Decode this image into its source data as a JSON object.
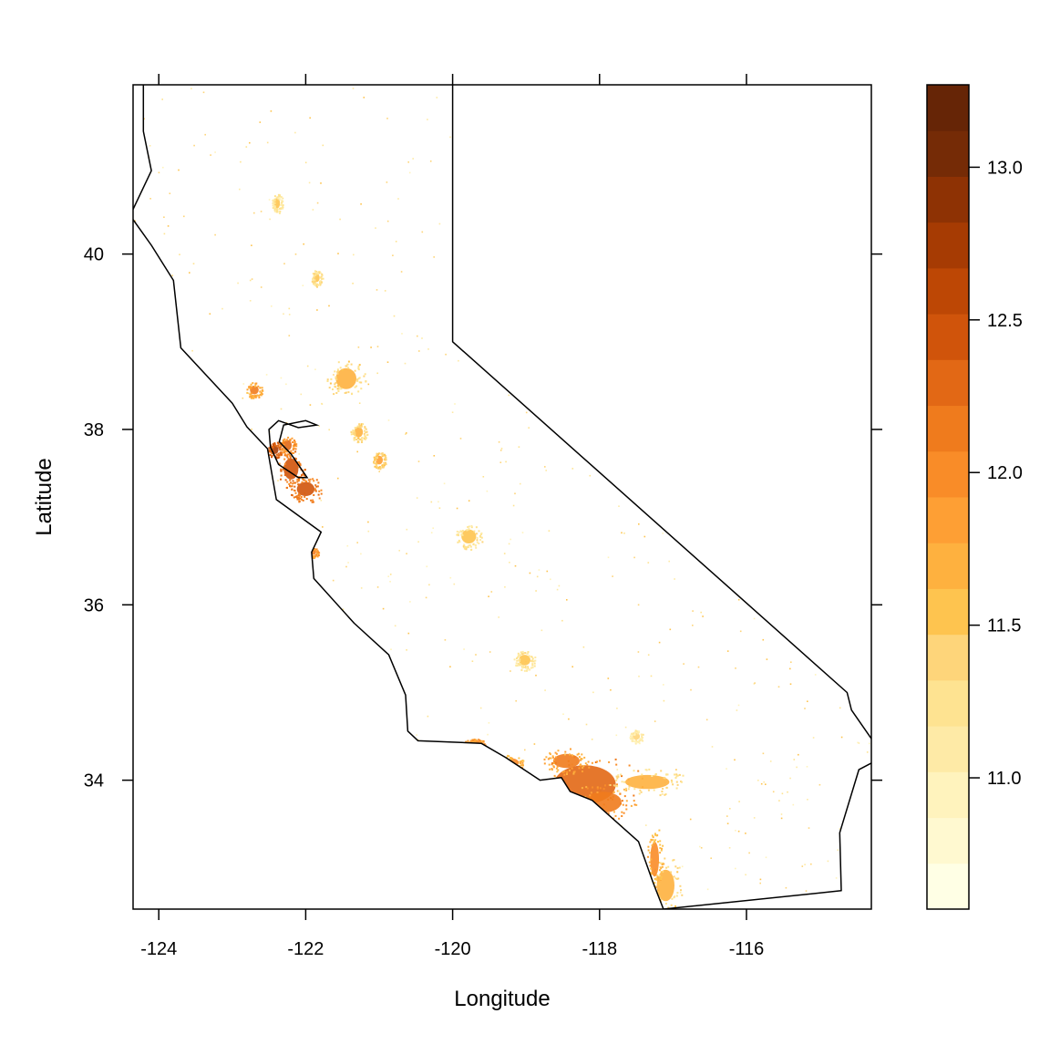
{
  "map": {
    "xlabel": "Longitude",
    "ylabel": "Latitude",
    "xlim": [
      -124.35,
      -114.3
    ],
    "ylim": [
      32.53,
      41.93
    ],
    "x_ticks": [
      -124,
      -122,
      -120,
      -118,
      -116
    ],
    "y_ticks": [
      34,
      36,
      38,
      40
    ],
    "x_tick_labels": [
      "-124",
      "-122",
      "-120",
      "-118",
      "-116"
    ],
    "y_tick_labels": [
      "34",
      "36",
      "38",
      "40"
    ],
    "outline_color": "#000000",
    "boundary": [
      [
        -124.21,
        42.0
      ],
      [
        -123.6,
        42.0
      ],
      [
        -120.0,
        42.0
      ],
      [
        -120.0,
        39.0
      ],
      [
        -114.63,
        35.0
      ],
      [
        -114.57,
        34.8
      ],
      [
        -114.13,
        34.27
      ],
      [
        -114.47,
        34.12
      ],
      [
        -114.73,
        33.4
      ],
      [
        -114.71,
        32.74
      ],
      [
        -117.13,
        32.53
      ],
      [
        -117.27,
        32.83
      ],
      [
        -117.47,
        33.3
      ],
      [
        -118.1,
        33.77
      ],
      [
        -118.4,
        33.87
      ],
      [
        -118.52,
        34.03
      ],
      [
        -118.81,
        34.0
      ],
      [
        -119.28,
        34.26
      ],
      [
        -119.61,
        34.42
      ],
      [
        -120.47,
        34.45
      ],
      [
        -120.61,
        34.56
      ],
      [
        -120.64,
        34.97
      ],
      [
        -120.87,
        35.43
      ],
      [
        -121.34,
        35.79
      ],
      [
        -121.89,
        36.3
      ],
      [
        -121.92,
        36.6
      ],
      [
        -121.79,
        36.83
      ],
      [
        -122.4,
        37.2
      ],
      [
        -122.52,
        37.78
      ],
      [
        -122.8,
        38.03
      ],
      [
        -123.0,
        38.3
      ],
      [
        -123.7,
        38.93
      ],
      [
        -123.8,
        39.7
      ],
      [
        -124.1,
        40.1
      ],
      [
        -124.39,
        40.44
      ],
      [
        -124.1,
        40.95
      ],
      [
        -124.21,
        41.4
      ],
      [
        -124.21,
        42.0
      ]
    ],
    "bay": [
      [
        -122.48,
        37.8
      ],
      [
        -122.37,
        37.6
      ],
      [
        -122.1,
        37.45
      ],
      [
        -121.98,
        37.45
      ],
      [
        -122.2,
        37.72
      ],
      [
        -122.36,
        37.86
      ],
      [
        -122.3,
        38.05
      ],
      [
        -122.0,
        38.1
      ],
      [
        -121.85,
        38.05
      ],
      [
        -122.1,
        38.02
      ],
      [
        -122.37,
        38.1
      ],
      [
        -122.5,
        38.0
      ],
      [
        -122.48,
        37.8
      ]
    ]
  },
  "legend": {
    "ticks": [
      11.0,
      11.5,
      12.0,
      12.5,
      13.0
    ],
    "tick_labels": [
      "11.0",
      "11.5",
      "12.0",
      "12.5",
      "13.0"
    ],
    "range": [
      10.57,
      13.27
    ],
    "colors": [
      "#ffffe5",
      "#fff9d0",
      "#fff3bd",
      "#feeaa6",
      "#fee391",
      "#fed57a",
      "#fec44f",
      "#feb13f",
      "#fe9f34",
      "#f98c28",
      "#ef7b1d",
      "#e26815",
      "#d0540b",
      "#bd4705",
      "#a63b03",
      "#8e3204",
      "#752b06",
      "#662506"
    ]
  },
  "cities": [
    {
      "lon": -118.2,
      "lat": 33.95,
      "rx": 0.42,
      "ry": 0.22,
      "v": 12.35
    },
    {
      "lon": -117.95,
      "lat": 33.75,
      "rx": 0.25,
      "ry": 0.12,
      "v": 12.2
    },
    {
      "lon": -118.45,
      "lat": 34.22,
      "rx": 0.18,
      "ry": 0.08,
      "v": 12.1
    },
    {
      "lon": -117.35,
      "lat": 33.98,
      "rx": 0.3,
      "ry": 0.08,
      "v": 11.65
    },
    {
      "lon": -117.1,
      "lat": 32.8,
      "rx": 0.12,
      "ry": 0.18,
      "v": 11.75
    },
    {
      "lon": -117.25,
      "lat": 33.1,
      "rx": 0.06,
      "ry": 0.2,
      "v": 12.0
    },
    {
      "lon": -122.0,
      "lat": 37.32,
      "rx": 0.12,
      "ry": 0.08,
      "v": 12.45
    },
    {
      "lon": -122.2,
      "lat": 37.55,
      "rx": 0.1,
      "ry": 0.12,
      "v": 12.5
    },
    {
      "lon": -122.42,
      "lat": 37.77,
      "rx": 0.05,
      "ry": 0.05,
      "v": 12.7
    },
    {
      "lon": -122.25,
      "lat": 37.82,
      "rx": 0.06,
      "ry": 0.06,
      "v": 12.3
    },
    {
      "lon": -121.45,
      "lat": 38.58,
      "rx": 0.14,
      "ry": 0.12,
      "v": 11.7
    },
    {
      "lon": -119.78,
      "lat": 36.78,
      "rx": 0.1,
      "ry": 0.08,
      "v": 11.55
    },
    {
      "lon": -119.02,
      "lat": 35.37,
      "rx": 0.08,
      "ry": 0.06,
      "v": 11.55
    },
    {
      "lon": -121.28,
      "lat": 37.97,
      "rx": 0.06,
      "ry": 0.06,
      "v": 11.7
    },
    {
      "lon": -121.0,
      "lat": 37.65,
      "rx": 0.05,
      "ry": 0.05,
      "v": 11.8
    },
    {
      "lon": -119.2,
      "lat": 34.2,
      "rx": 0.1,
      "ry": 0.05,
      "v": 12.0
    },
    {
      "lon": -119.7,
      "lat": 34.42,
      "rx": 0.08,
      "ry": 0.03,
      "v": 12.2
    },
    {
      "lon": -122.7,
      "lat": 38.45,
      "rx": 0.06,
      "ry": 0.05,
      "v": 12.1
    },
    {
      "lon": -121.85,
      "lat": 39.73,
      "rx": 0.04,
      "ry": 0.05,
      "v": 11.6
    },
    {
      "lon": -122.39,
      "lat": 40.58,
      "rx": 0.04,
      "ry": 0.06,
      "v": 11.5
    },
    {
      "lon": -117.5,
      "lat": 34.5,
      "rx": 0.05,
      "ry": 0.04,
      "v": 11.4
    },
    {
      "lon": -121.9,
      "lat": 36.6,
      "rx": 0.04,
      "ry": 0.03,
      "v": 12.2
    }
  ]
}
